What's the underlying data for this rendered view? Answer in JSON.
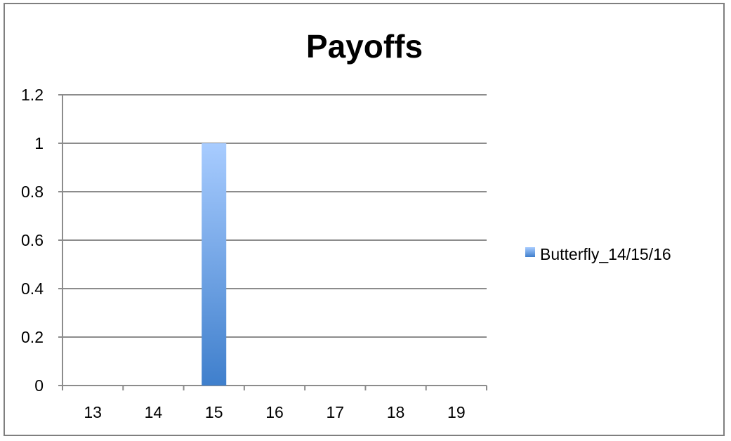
{
  "chart_data": {
    "type": "bar",
    "title": "Payoffs",
    "categories": [
      "13",
      "14",
      "15",
      "16",
      "17",
      "18",
      "19"
    ],
    "series": [
      {
        "name": "Butterfly_14/15/16",
        "values": [
          0,
          0,
          1,
          0,
          0,
          0,
          0
        ]
      }
    ],
    "ylim": [
      0,
      1.2
    ],
    "yticks": [
      "0",
      "0.2",
      "0.4",
      "0.6",
      "0.8",
      "1",
      "1.2"
    ],
    "ytick_values": [
      0,
      0.2,
      0.4,
      0.6,
      0.8,
      1.0,
      1.2
    ],
    "xlabel": "",
    "ylabel": "",
    "grid": true,
    "legend_position": "right",
    "colors": {
      "bar_top": "#a8ccff",
      "bar_bottom": "#3f7fcc",
      "grid": "#8c8c8c",
      "axis": "#8c8c8c",
      "frame": "#7f7f7f"
    }
  }
}
